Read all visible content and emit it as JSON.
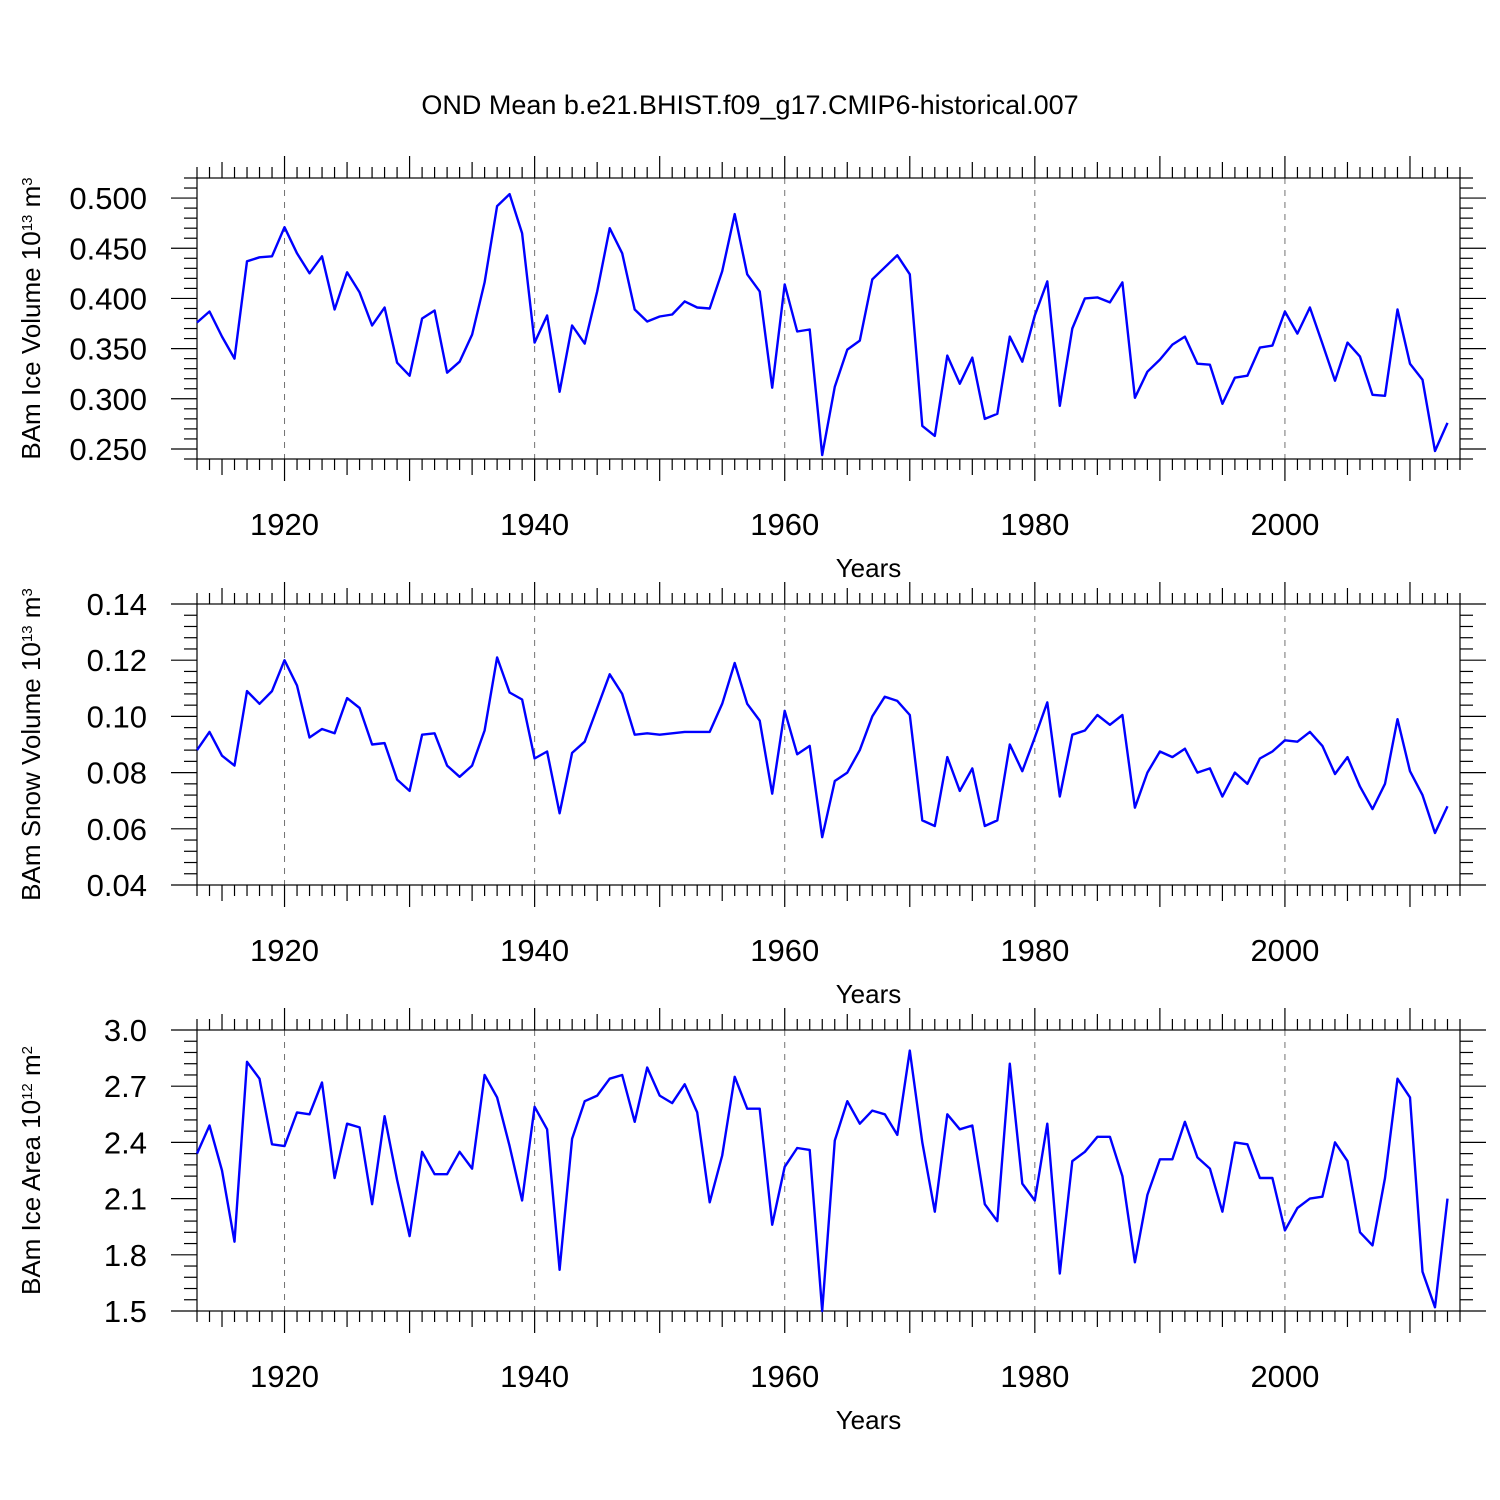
{
  "chart_title": "OND Mean b.e21.BHIST.f09_g17.CMIP6-historical.007",
  "colors": {
    "series": "#0000ff",
    "axis": "#000000",
    "background": "#ffffff"
  },
  "chart_data": [
    {
      "type": "line",
      "id": "ice-volume",
      "ylabel_parts": [
        "BAm Ice Volume 10",
        "13",
        " m",
        "3"
      ],
      "xlabel": "Years",
      "xlim": [
        1913,
        2014
      ],
      "ylim": [
        0.24,
        0.52
      ],
      "yticks": [
        "0.250",
        "0.300",
        "0.350",
        "0.400",
        "0.450",
        "0.500"
      ],
      "ytick_values": [
        0.25,
        0.3,
        0.35,
        0.4,
        0.45,
        0.5
      ],
      "xticks": [
        "1920",
        "1940",
        "1960",
        "1980",
        "2000"
      ],
      "xtick_values": [
        1920,
        1940,
        1960,
        1980,
        2000
      ],
      "x_start": 1913,
      "values": [
        0.376,
        0.387,
        0.362,
        0.34,
        0.437,
        0.441,
        0.442,
        0.471,
        0.445,
        0.425,
        0.442,
        0.389,
        0.426,
        0.406,
        0.373,
        0.391,
        0.336,
        0.323,
        0.38,
        0.388,
        0.326,
        0.337,
        0.364,
        0.416,
        0.492,
        0.504,
        0.465,
        0.356,
        0.383,
        0.307,
        0.373,
        0.355,
        0.407,
        0.47,
        0.445,
        0.389,
        0.377,
        0.382,
        0.384,
        0.397,
        0.391,
        0.39,
        0.427,
        0.484,
        0.424,
        0.407,
        0.311,
        0.414,
        0.367,
        0.369,
        0.244,
        0.312,
        0.349,
        0.358,
        0.419,
        0.431,
        0.443,
        0.424,
        0.273,
        0.263,
        0.343,
        0.315,
        0.341,
        0.28,
        0.285,
        0.362,
        0.337,
        0.383,
        0.417,
        0.293,
        0.37,
        0.4,
        0.401,
        0.396,
        0.416,
        0.301,
        0.327,
        0.339,
        0.354,
        0.362,
        0.335,
        0.334,
        0.295,
        0.321,
        0.323,
        0.351,
        0.353,
        0.387,
        0.365,
        0.391,
        0.355,
        0.318,
        0.356,
        0.342,
        0.304,
        0.303,
        0.389,
        0.335,
        0.319,
        0.248,
        0.276
      ]
    },
    {
      "type": "line",
      "id": "snow-volume",
      "ylabel_parts": [
        "BAm Snow Volume 10",
        "13",
        " m",
        "3"
      ],
      "xlabel": "Years",
      "xlim": [
        1913,
        2014
      ],
      "ylim": [
        0.04,
        0.14
      ],
      "yticks": [
        "0.04",
        "0.06",
        "0.08",
        "0.10",
        "0.12",
        "0.14"
      ],
      "ytick_values": [
        0.04,
        0.06,
        0.08,
        0.1,
        0.12,
        0.14
      ],
      "xticks": [
        "1920",
        "1940",
        "1960",
        "1980",
        "2000"
      ],
      "xtick_values": [
        1920,
        1940,
        1960,
        1980,
        2000
      ],
      "x_start": 1913,
      "values": [
        0.088,
        0.0945,
        0.086,
        0.0825,
        0.109,
        0.1045,
        0.109,
        0.12,
        0.111,
        0.0925,
        0.0955,
        0.094,
        0.1065,
        0.103,
        0.09,
        0.0905,
        0.0775,
        0.0735,
        0.0935,
        0.094,
        0.0825,
        0.0785,
        0.0825,
        0.095,
        0.121,
        0.1085,
        0.106,
        0.085,
        0.0875,
        0.0655,
        0.087,
        0.091,
        0.103,
        0.115,
        0.108,
        0.0935,
        0.094,
        0.0935,
        0.094,
        0.0945,
        0.0945,
        0.0945,
        0.1045,
        0.119,
        0.1045,
        0.0985,
        0.0725,
        0.102,
        0.0865,
        0.0895,
        0.057,
        0.077,
        0.08,
        0.088,
        0.1,
        0.107,
        0.1055,
        0.1005,
        0.063,
        0.061,
        0.0855,
        0.0735,
        0.0815,
        0.061,
        0.063,
        0.09,
        0.0805,
        0.0925,
        0.105,
        0.0715,
        0.0935,
        0.095,
        0.1005,
        0.097,
        0.1005,
        0.0675,
        0.08,
        0.0875,
        0.0855,
        0.0885,
        0.08,
        0.0815,
        0.0715,
        0.08,
        0.076,
        0.085,
        0.0875,
        0.0915,
        0.091,
        0.0945,
        0.0895,
        0.0795,
        0.0855,
        0.075,
        0.067,
        0.076,
        0.099,
        0.0805,
        0.072,
        0.0585,
        0.068
      ]
    },
    {
      "type": "line",
      "id": "ice-area",
      "ylabel_parts": [
        "BAm Ice Area 10",
        "12",
        " m",
        "2"
      ],
      "xlabel": "Years",
      "xlim": [
        1913,
        2014
      ],
      "ylim": [
        1.5,
        3.0
      ],
      "yticks": [
        "1.5",
        "1.8",
        "2.1",
        "2.4",
        "2.7",
        "3.0"
      ],
      "ytick_values": [
        1.5,
        1.8,
        2.1,
        2.4,
        2.7,
        3.0
      ],
      "xticks": [
        "1920",
        "1940",
        "1960",
        "1980",
        "2000"
      ],
      "xtick_values": [
        1920,
        1940,
        1960,
        1980,
        2000
      ],
      "x_start": 1913,
      "values": [
        2.34,
        2.49,
        2.25,
        1.87,
        2.83,
        2.74,
        2.39,
        2.38,
        2.56,
        2.55,
        2.72,
        2.21,
        2.5,
        2.48,
        2.07,
        2.54,
        2.2,
        1.9,
        2.35,
        2.23,
        2.23,
        2.35,
        2.26,
        2.76,
        2.64,
        2.38,
        2.09,
        2.59,
        2.47,
        1.72,
        2.42,
        2.62,
        2.65,
        2.74,
        2.76,
        2.51,
        2.8,
        2.65,
        2.61,
        2.71,
        2.56,
        2.08,
        2.33,
        2.75,
        2.58,
        2.58,
        1.96,
        2.27,
        2.37,
        2.36,
        1.5,
        2.41,
        2.62,
        2.5,
        2.57,
        2.55,
        2.44,
        2.89,
        2.4,
        2.03,
        2.55,
        2.47,
        2.49,
        2.07,
        1.98,
        2.82,
        2.18,
        2.09,
        2.5,
        1.7,
        2.3,
        2.35,
        2.43,
        2.43,
        2.22,
        1.76,
        2.12,
        2.31,
        2.31,
        2.51,
        2.32,
        2.26,
        2.03,
        2.4,
        2.39,
        2.21,
        2.21,
        1.93,
        2.05,
        2.1,
        2.11,
        2.4,
        2.3,
        1.92,
        1.85,
        2.21,
        2.74,
        2.64,
        1.71,
        1.52,
        2.1
      ]
    }
  ]
}
